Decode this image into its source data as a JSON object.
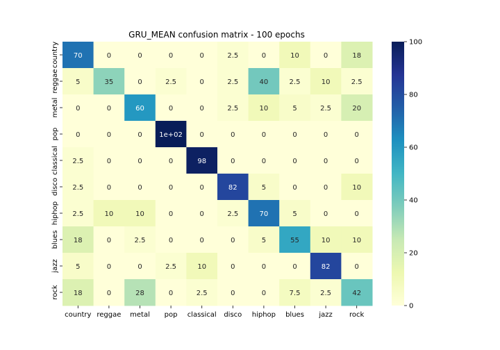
{
  "chart_data": {
    "type": "heatmap",
    "title": "GRU_MEAN confusion matrix - 100 epochs",
    "xlabel": "",
    "ylabel": "",
    "x_categories": [
      "country",
      "reggae",
      "metal",
      "pop",
      "classical",
      "disco",
      "hiphop",
      "blues",
      "jazz",
      "rock"
    ],
    "y_categories": [
      "country",
      "reggae",
      "metal",
      "pop",
      "classical",
      "disco",
      "hiphop",
      "blues",
      "jazz",
      "rock"
    ],
    "values": [
      [
        70,
        0,
        0,
        0,
        0,
        2.5,
        0,
        10,
        0,
        18
      ],
      [
        5,
        35,
        0,
        2.5,
        0,
        2.5,
        40,
        2.5,
        10,
        2.5
      ],
      [
        0,
        0,
        60,
        0,
        0,
        2.5,
        10,
        5,
        2.5,
        20
      ],
      [
        0,
        0,
        0,
        100,
        0,
        0,
        0,
        0,
        0,
        0
      ],
      [
        2.5,
        0,
        0,
        0,
        98,
        0,
        0,
        0,
        0,
        0
      ],
      [
        2.5,
        0,
        0,
        0,
        0,
        82,
        5,
        0,
        0,
        10
      ],
      [
        2.5,
        10,
        10,
        0,
        0,
        2.5,
        70,
        5,
        0,
        0
      ],
      [
        18,
        0,
        2.5,
        0,
        0,
        0,
        5,
        55,
        10,
        10
      ],
      [
        5,
        0,
        0,
        2.5,
        10,
        0,
        0,
        0,
        82,
        0
      ],
      [
        18,
        0,
        28,
        0,
        2.5,
        0,
        0,
        7.5,
        2.5,
        42
      ]
    ],
    "annotations": [
      [
        "70",
        "0",
        "0",
        "0",
        "0",
        "2.5",
        "0",
        "10",
        "0",
        "18"
      ],
      [
        "5",
        "35",
        "0",
        "2.5",
        "0",
        "2.5",
        "40",
        "2.5",
        "10",
        "2.5"
      ],
      [
        "0",
        "0",
        "60",
        "0",
        "0",
        "2.5",
        "10",
        "5",
        "2.5",
        "20"
      ],
      [
        "0",
        "0",
        "0",
        "1e+02",
        "0",
        "0",
        "0",
        "0",
        "0",
        "0"
      ],
      [
        "2.5",
        "0",
        "0",
        "0",
        "98",
        "0",
        "0",
        "0",
        "0",
        "0"
      ],
      [
        "2.5",
        "0",
        "0",
        "0",
        "0",
        "82",
        "5",
        "0",
        "0",
        "10"
      ],
      [
        "2.5",
        "10",
        "10",
        "0",
        "0",
        "2.5",
        "70",
        "5",
        "0",
        "0"
      ],
      [
        "18",
        "0",
        "2.5",
        "0",
        "0",
        "0",
        "5",
        "55",
        "10",
        "10"
      ],
      [
        "5",
        "0",
        "0",
        "2.5",
        "10",
        "0",
        "0",
        "0",
        "82",
        "0"
      ],
      [
        "18",
        "0",
        "28",
        "0",
        "2.5",
        "0",
        "0",
        "7.5",
        "2.5",
        "42"
      ]
    ],
    "colorbar": {
      "colormap": "YlGnBu",
      "range": [
        0,
        100
      ],
      "ticks": [
        0,
        20,
        40,
        60,
        80,
        100
      ]
    },
    "grid": false,
    "legend": "colorbar-right"
  }
}
